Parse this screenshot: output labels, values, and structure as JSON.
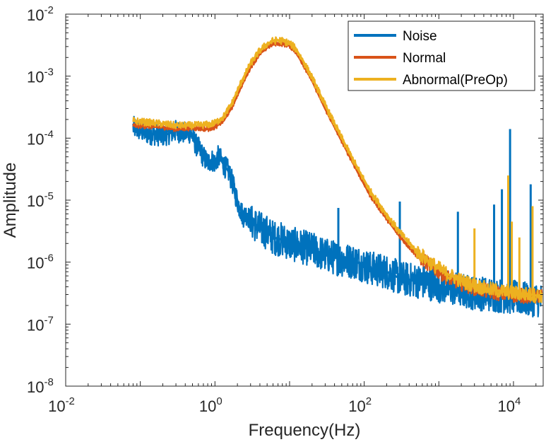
{
  "chart_data": {
    "type": "line",
    "title": "",
    "xlabel": "Frequency(Hz)",
    "ylabel": "Amplitude",
    "xscale": "log",
    "yscale": "log",
    "xlim": [
      0.01,
      25000
    ],
    "ylim": [
      1e-08,
      0.01
    ],
    "x_ticks": [
      {
        "value": 0.01,
        "base": "10",
        "exp": "-2"
      },
      {
        "value": 1,
        "base": "10",
        "exp": "0"
      },
      {
        "value": 100,
        "base": "10",
        "exp": "2"
      },
      {
        "value": 10000,
        "base": "10",
        "exp": "4"
      }
    ],
    "y_ticks": [
      {
        "value": 1e-08,
        "base": "10",
        "exp": "-8"
      },
      {
        "value": 1e-07,
        "base": "10",
        "exp": "-7"
      },
      {
        "value": 1e-06,
        "base": "10",
        "exp": "-6"
      },
      {
        "value": 1e-05,
        "base": "10",
        "exp": "-5"
      },
      {
        "value": 0.0001,
        "base": "10",
        "exp": "-4"
      },
      {
        "value": 0.001,
        "base": "10",
        "exp": "-3"
      },
      {
        "value": 0.01,
        "base": "10",
        "exp": "-2"
      }
    ],
    "grid": false,
    "legend_position": "top-right",
    "series": [
      {
        "name": "Noise",
        "color": "#0072BD",
        "x": [
          0.08,
          0.12,
          0.2,
          0.3,
          0.4,
          0.45,
          0.5,
          0.55,
          0.6,
          0.7,
          0.8,
          0.9,
          1.0,
          1.1,
          1.2,
          1.35,
          1.5,
          1.7,
          1.9,
          2.1,
          2.4,
          2.7,
          3.0,
          3.5,
          4.0,
          5.0,
          6.0,
          8.0,
          10,
          14,
          20,
          30,
          50,
          80,
          120,
          200,
          300,
          500,
          800,
          1200,
          2000,
          3000,
          5000,
          8000,
          12000,
          16000,
          20000,
          24000
        ],
        "y": [
          0.00015,
          0.00012,
          0.00011,
          0.00013,
          0.00012,
          0.000125,
          0.00011,
          8e-05,
          7e-05,
          5e-05,
          4e-05,
          4.5e-05,
          4e-05,
          5e-05,
          4.5e-05,
          3.5e-05,
          3e-05,
          2e-05,
          1.2e-05,
          8e-06,
          5.5e-06,
          6e-06,
          4.5e-06,
          4e-06,
          3.5e-06,
          3e-06,
          2.5e-06,
          2.3e-06,
          2e-06,
          1.8e-06,
          1.6e-06,
          1.3e-06,
          1.1e-06,
          1e-06,
          8e-07,
          7e-07,
          5.5e-07,
          5e-07,
          4.5e-07,
          4e-07,
          3.5e-07,
          3.2e-07,
          3e-07,
          2.8e-07,
          2.6e-07,
          2.5e-07,
          2.5e-07,
          2.4e-07
        ],
        "spikes": [
          {
            "x": 9000,
            "y": 0.00014
          },
          {
            "x": 7000,
            "y": 1.5e-05
          },
          {
            "x": 5500,
            "y": 8.5e-06
          },
          {
            "x": 17000,
            "y": 1.8e-05
          },
          {
            "x": 300,
            "y": 9.5e-06
          },
          {
            "x": 45,
            "y": 7.5e-06
          },
          {
            "x": 1800,
            "y": 6.5e-06
          }
        ]
      },
      {
        "name": "Normal",
        "color": "#D95319",
        "x": [
          0.08,
          0.12,
          0.2,
          0.3,
          0.5,
          0.8,
          1.0,
          1.3,
          1.7,
          2.2,
          3.0,
          4.0,
          5.0,
          6.0,
          7.0,
          8.0,
          10,
          12,
          15,
          20,
          30,
          50,
          80,
          120,
          200,
          300,
          500,
          800,
          1200,
          2000,
          3000,
          5000,
          8000,
          12000,
          16000,
          20000,
          24000
        ],
        "y": [
          0.00016,
          0.000155,
          0.00015,
          0.00014,
          0.000145,
          0.00014,
          0.00015,
          0.00019,
          0.00032,
          0.00065,
          0.0014,
          0.0023,
          0.0029,
          0.0033,
          0.0034,
          0.0033,
          0.0031,
          0.0025,
          0.0016,
          0.00085,
          0.0003,
          9e-05,
          3e-05,
          1.2e-05,
          5e-06,
          2.6e-06,
          1.3e-06,
          8.5e-07,
          6e-07,
          4.5e-07,
          3.8e-07,
          3.3e-07,
          3e-07,
          2.9e-07,
          2.8e-07,
          2.8e-07,
          2.8e-07
        ]
      },
      {
        "name": "Abnormal(PreOp)",
        "color": "#EDB120",
        "x": [
          0.08,
          0.12,
          0.2,
          0.3,
          0.5,
          0.8,
          1.0,
          1.3,
          1.7,
          2.2,
          3.0,
          4.0,
          5.0,
          6.0,
          7.0,
          8.0,
          10,
          12,
          15,
          20,
          30,
          50,
          80,
          120,
          200,
          300,
          500,
          800,
          1200,
          2000,
          3000,
          5000,
          8000,
          12000,
          16000,
          20000,
          24000
        ],
        "y": [
          0.00019,
          0.00018,
          0.00017,
          0.00016,
          0.00016,
          0.000165,
          0.000175,
          0.00022,
          0.00037,
          0.00075,
          0.0016,
          0.0026,
          0.0033,
          0.0037,
          0.0038,
          0.0037,
          0.0034,
          0.0028,
          0.0018,
          0.00095,
          0.00034,
          0.0001,
          3.4e-05,
          1.4e-05,
          5.8e-06,
          3e-06,
          1.5e-06,
          9.5e-07,
          6.8e-07,
          5e-07,
          4.2e-07,
          3.6e-07,
          3.3e-07,
          3.1e-07,
          3e-07,
          2.9e-07,
          2.9e-07
        ],
        "spikes": [
          {
            "x": 9500,
            "y": 4.5e-06
          },
          {
            "x": 8500,
            "y": 2.5e-05
          },
          {
            "x": 3000,
            "y": 3.5e-06
          },
          {
            "x": 18000,
            "y": 8e-06
          },
          {
            "x": 12000,
            "y": 2.5e-06
          }
        ]
      }
    ]
  }
}
